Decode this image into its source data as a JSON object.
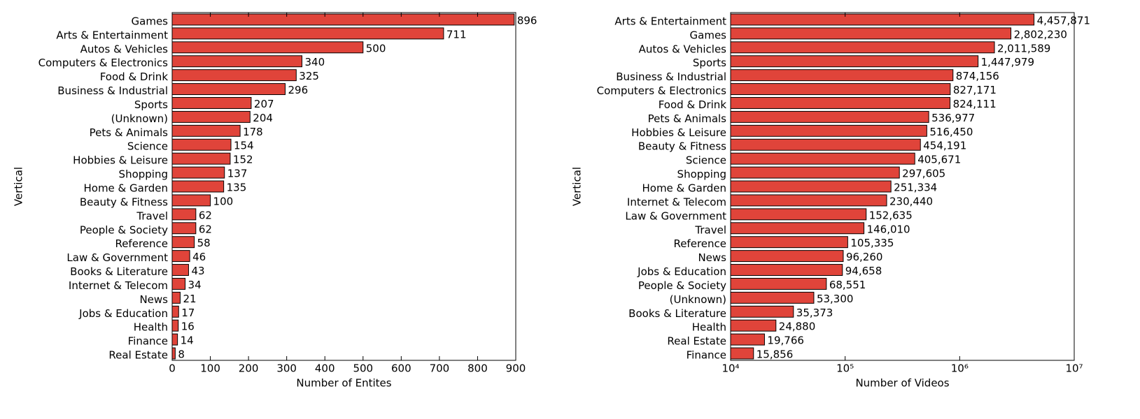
{
  "chart_data": [
    {
      "type": "bar",
      "orientation": "horizontal",
      "color": "#e0443a",
      "xlabel": "Number of Entites",
      "ylabel": "Vertical",
      "log_x": false,
      "categories": [
        "Games",
        "Arts & Entertainment",
        "Autos & Vehicles",
        "Computers & Electronics",
        "Food & Drink",
        "Business & Industrial",
        "Sports",
        "(Unknown)",
        "Pets & Animals",
        "Science",
        "Hobbies & Leisure",
        "Shopping",
        "Home & Garden",
        "Beauty & Fitness",
        "Travel",
        "People & Society",
        "Reference",
        "Law & Government",
        "Books & Literature",
        "Internet & Telecom",
        "News",
        "Jobs & Education",
        "Health",
        "Finance",
        "Real Estate"
      ],
      "values": [
        896,
        711,
        500,
        340,
        325,
        296,
        207,
        204,
        178,
        154,
        152,
        137,
        135,
        100,
        62,
        62,
        58,
        46,
        43,
        34,
        21,
        17,
        16,
        14,
        8
      ],
      "xlim": [
        0,
        900
      ],
      "xticks": [
        0,
        100,
        200,
        300,
        400,
        500,
        600,
        700,
        800,
        900
      ]
    },
    {
      "type": "bar",
      "orientation": "horizontal",
      "color": "#e0443a",
      "xlabel": "Number of Videos",
      "ylabel": "Vertical",
      "log_x": true,
      "categories": [
        "Arts & Entertainment",
        "Games",
        "Autos & Vehicles",
        "Sports",
        "Business & Industrial",
        "Computers & Electronics",
        "Food & Drink",
        "Pets & Animals",
        "Hobbies & Leisure",
        "Beauty & Fitness",
        "Science",
        "Shopping",
        "Home & Garden",
        "Internet & Telecom",
        "Law & Government",
        "Travel",
        "Reference",
        "News",
        "Jobs & Education",
        "People & Society",
        "(Unknown)",
        "Books & Literature",
        "Health",
        "Real Estate",
        "Finance"
      ],
      "values": [
        4457871,
        2802230,
        2011589,
        1447979,
        874156,
        827171,
        824111,
        536977,
        516450,
        454191,
        405671,
        297605,
        251334,
        230440,
        152635,
        146010,
        105335,
        96260,
        94658,
        68551,
        53300,
        35373,
        24880,
        19766,
        15856
      ],
      "value_labels": [
        "4,457,871",
        "2,802,230",
        "2,011,589",
        "1,447,979",
        "874,156",
        "827,171",
        "824,111",
        "536,977",
        "516,450",
        "454,191",
        "405,671",
        "297,605",
        "251,334",
        "230,440",
        "152,635",
        "146,010",
        "105,335",
        "96,260",
        "94,658",
        "68,551",
        "53,300",
        "35,373",
        "24,880",
        "19,766",
        "15,856"
      ],
      "xlim": [
        10000,
        10000000
      ],
      "xticks": [
        {
          "value": 10000,
          "label": "10⁴"
        },
        {
          "value": 100000,
          "label": "10⁵"
        },
        {
          "value": 1000000,
          "label": "10⁶"
        },
        {
          "value": 10000000,
          "label": "10⁷"
        }
      ]
    }
  ]
}
